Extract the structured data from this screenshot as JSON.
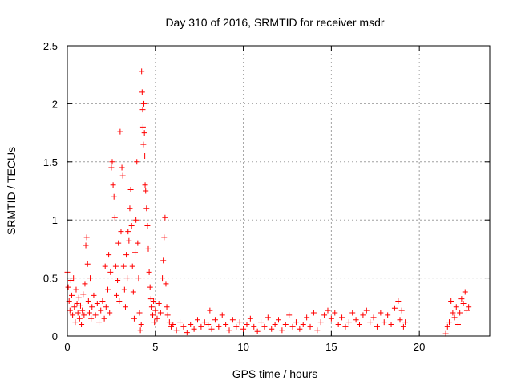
{
  "chart_data": {
    "type": "scatter",
    "title": "Day 310 of 2016, SRMTID for receiver msdr",
    "xlabel": "GPS time / hours",
    "ylabel": "SRMTID / TECUs",
    "xlim": [
      0,
      24
    ],
    "ylim": [
      0,
      2.5
    ],
    "xticks": [
      0,
      5,
      10,
      15,
      20
    ],
    "xtick_labels": [
      "0",
      "5",
      "10",
      "15",
      "20"
    ],
    "yticks": [
      0,
      0.5,
      1,
      1.5,
      2,
      2.5
    ],
    "ytick_labels": [
      "0",
      "0.5",
      "1",
      "1.5",
      "2",
      "2.5"
    ],
    "grid": true,
    "legend": "none",
    "marker": "plus",
    "color": "#ff0000",
    "series": [
      {
        "points": [
          [
            0.0,
            0.55
          ],
          [
            0.05,
            0.42
          ],
          [
            0.1,
            0.3
          ],
          [
            0.15,
            0.22
          ],
          [
            0.2,
            0.48
          ],
          [
            0.25,
            0.35
          ],
          [
            0.3,
            0.18
          ],
          [
            0.35,
            0.5
          ],
          [
            0.4,
            0.25
          ],
          [
            0.45,
            0.12
          ],
          [
            0.5,
            0.4
          ],
          [
            0.55,
            0.28
          ],
          [
            0.6,
            0.2
          ],
          [
            0.65,
            0.33
          ],
          [
            0.7,
            0.15
          ],
          [
            0.75,
            0.26
          ],
          [
            0.8,
            0.1
          ],
          [
            0.85,
            0.22
          ],
          [
            0.9,
            0.36
          ],
          [
            0.95,
            0.18
          ],
          [
            1.0,
            0.45
          ],
          [
            1.05,
            0.78
          ],
          [
            1.1,
            0.85
          ],
          [
            1.15,
            0.62
          ],
          [
            1.2,
            0.3
          ],
          [
            1.25,
            0.2
          ],
          [
            1.3,
            0.5
          ],
          [
            1.35,
            0.15
          ],
          [
            1.4,
            0.25
          ],
          [
            1.5,
            0.35
          ],
          [
            1.6,
            0.18
          ],
          [
            1.7,
            0.28
          ],
          [
            1.8,
            0.12
          ],
          [
            1.9,
            0.22
          ],
          [
            2.0,
            0.3
          ],
          [
            2.1,
            0.15
          ],
          [
            2.15,
            0.6
          ],
          [
            2.2,
            0.25
          ],
          [
            2.3,
            0.4
          ],
          [
            2.35,
            0.7
          ],
          [
            2.4,
            0.2
          ],
          [
            2.45,
            0.55
          ],
          [
            2.5,
            1.45
          ],
          [
            2.55,
            1.5
          ],
          [
            2.6,
            1.3
          ],
          [
            2.65,
            1.2
          ],
          [
            2.7,
            1.02
          ],
          [
            2.75,
            0.6
          ],
          [
            2.8,
            0.35
          ],
          [
            2.85,
            0.48
          ],
          [
            2.9,
            0.8
          ],
          [
            2.95,
            0.3
          ],
          [
            3.0,
            1.76
          ],
          [
            3.05,
            0.9
          ],
          [
            3.1,
            1.45
          ],
          [
            3.15,
            1.38
          ],
          [
            3.2,
            0.6
          ],
          [
            3.25,
            0.4
          ],
          [
            3.3,
            0.25
          ],
          [
            3.35,
            0.7
          ],
          [
            3.4,
            0.5
          ],
          [
            3.45,
            0.9
          ],
          [
            3.5,
            0.82
          ],
          [
            3.55,
            1.1
          ],
          [
            3.6,
            1.26
          ],
          [
            3.65,
            0.95
          ],
          [
            3.7,
            0.6
          ],
          [
            3.75,
            0.38
          ],
          [
            3.8,
            0.15
          ],
          [
            3.85,
            0.72
          ],
          [
            3.9,
            1.0
          ],
          [
            3.95,
            1.5
          ],
          [
            4.0,
            0.8
          ],
          [
            4.05,
            0.5
          ],
          [
            4.1,
            0.2
          ],
          [
            4.15,
            0.05
          ],
          [
            4.2,
            0.1
          ],
          [
            4.22,
            2.28
          ],
          [
            4.25,
            2.1
          ],
          [
            4.28,
            1.95
          ],
          [
            4.3,
            1.8
          ],
          [
            4.32,
            1.65
          ],
          [
            4.35,
            2.0
          ],
          [
            4.38,
            1.75
          ],
          [
            4.4,
            1.55
          ],
          [
            4.42,
            1.3
          ],
          [
            4.45,
            1.25
          ],
          [
            4.5,
            1.1
          ],
          [
            4.55,
            0.95
          ],
          [
            4.6,
            0.75
          ],
          [
            4.65,
            0.55
          ],
          [
            4.7,
            0.42
          ],
          [
            4.75,
            0.32
          ],
          [
            4.8,
            0.25
          ],
          [
            4.85,
            0.18
          ],
          [
            4.9,
            0.3
          ],
          [
            4.95,
            0.12
          ],
          [
            5.0,
            0.22
          ],
          [
            5.1,
            0.15
          ],
          [
            5.2,
            0.28
          ],
          [
            5.3,
            0.2
          ],
          [
            5.4,
            0.5
          ],
          [
            5.45,
            0.65
          ],
          [
            5.5,
            0.85
          ],
          [
            5.55,
            1.02
          ],
          [
            5.6,
            0.45
          ],
          [
            5.65,
            0.25
          ],
          [
            5.7,
            0.18
          ],
          [
            5.8,
            0.12
          ],
          [
            5.9,
            0.08
          ],
          [
            6.0,
            0.1
          ],
          [
            6.2,
            0.05
          ],
          [
            6.4,
            0.12
          ],
          [
            6.6,
            0.08
          ],
          [
            6.8,
            0.03
          ],
          [
            7.0,
            0.1
          ],
          [
            7.2,
            0.06
          ],
          [
            7.4,
            0.14
          ],
          [
            7.6,
            0.08
          ],
          [
            7.8,
            0.12
          ],
          [
            8.0,
            0.1
          ],
          [
            8.1,
            0.22
          ],
          [
            8.2,
            0.06
          ],
          [
            8.4,
            0.14
          ],
          [
            8.6,
            0.08
          ],
          [
            8.8,
            0.18
          ],
          [
            9.0,
            0.1
          ],
          [
            9.2,
            0.05
          ],
          [
            9.4,
            0.14
          ],
          [
            9.6,
            0.08
          ],
          [
            9.8,
            0.12
          ],
          [
            10.0,
            0.06
          ],
          [
            10.2,
            0.1
          ],
          [
            10.4,
            0.15
          ],
          [
            10.6,
            0.08
          ],
          [
            10.8,
            0.04
          ],
          [
            11.0,
            0.12
          ],
          [
            11.2,
            0.08
          ],
          [
            11.4,
            0.16
          ],
          [
            11.6,
            0.06
          ],
          [
            11.8,
            0.1
          ],
          [
            12.0,
            0.14
          ],
          [
            12.2,
            0.05
          ],
          [
            12.4,
            0.1
          ],
          [
            12.6,
            0.18
          ],
          [
            12.8,
            0.08
          ],
          [
            13.0,
            0.12
          ],
          [
            13.2,
            0.06
          ],
          [
            13.4,
            0.1
          ],
          [
            13.6,
            0.16
          ],
          [
            13.8,
            0.08
          ],
          [
            14.0,
            0.2
          ],
          [
            14.2,
            0.05
          ],
          [
            14.4,
            0.12
          ],
          [
            14.6,
            0.18
          ],
          [
            14.8,
            0.22
          ],
          [
            15.0,
            0.15
          ],
          [
            15.2,
            0.2
          ],
          [
            15.4,
            0.1
          ],
          [
            15.6,
            0.16
          ],
          [
            15.8,
            0.08
          ],
          [
            16.0,
            0.12
          ],
          [
            16.2,
            0.2
          ],
          [
            16.4,
            0.14
          ],
          [
            16.6,
            0.1
          ],
          [
            16.8,
            0.18
          ],
          [
            17.0,
            0.22
          ],
          [
            17.2,
            0.12
          ],
          [
            17.4,
            0.16
          ],
          [
            17.6,
            0.08
          ],
          [
            17.8,
            0.2
          ],
          [
            18.0,
            0.12
          ],
          [
            18.2,
            0.18
          ],
          [
            18.4,
            0.1
          ],
          [
            18.6,
            0.24
          ],
          [
            18.8,
            0.3
          ],
          [
            18.9,
            0.14
          ],
          [
            19.0,
            0.22
          ],
          [
            19.1,
            0.08
          ],
          [
            19.2,
            0.12
          ],
          [
            21.5,
            0.02
          ],
          [
            21.6,
            0.08
          ],
          [
            21.7,
            0.12
          ],
          [
            21.8,
            0.3
          ],
          [
            21.9,
            0.2
          ],
          [
            22.0,
            0.16
          ],
          [
            22.1,
            0.25
          ],
          [
            22.2,
            0.1
          ],
          [
            22.3,
            0.2
          ],
          [
            22.4,
            0.32
          ],
          [
            22.5,
            0.28
          ],
          [
            22.6,
            0.38
          ],
          [
            22.7,
            0.22
          ],
          [
            22.8,
            0.25
          ]
        ]
      }
    ]
  }
}
